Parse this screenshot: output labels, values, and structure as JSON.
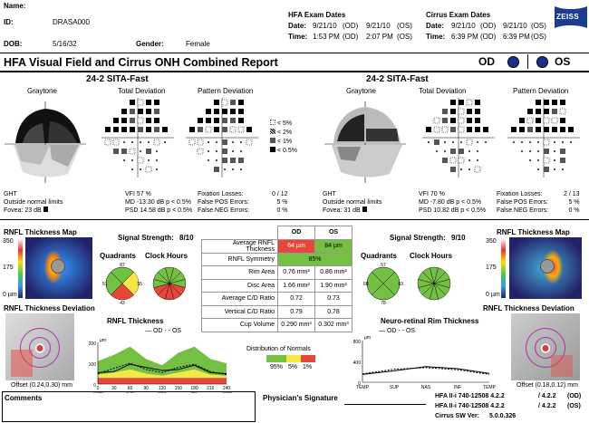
{
  "patient": {
    "name_label": "Name:",
    "id_label": "ID:",
    "id": "DRASA000",
    "dob_label": "DOB:",
    "dob": "5/16/32",
    "gender_label": "Gender:",
    "gender": "Female"
  },
  "hfa": {
    "title": "HFA Exam Dates",
    "date_label": "Date:",
    "time_label": "Time:",
    "od_date": "9/21/10",
    "od_time": "1:53 PM",
    "os_date": "9/21/10",
    "os_time": "2:07 PM",
    "od": "(OD)",
    "os": "(OS)"
  },
  "cirrus": {
    "title": "Cirrus Exam Dates",
    "date_label": "Date:",
    "time_label": "Time:",
    "od_date": "9/21/10",
    "od_time": "6:39 PM",
    "os_date": "9/21/10",
    "os_time": "6:39 PM",
    "od": "(OD)",
    "os": "(OS)"
  },
  "brand": "ZEISS",
  "report_title": "HFA Visual Field and Cirrus ONH Combined Report",
  "eye_od": "OD",
  "eye_os": "OS",
  "field": {
    "test_name": "24-2 SITA-Fast",
    "graytone": "Graytone",
    "total_dev": "Total Deviation",
    "pattern_dev": "Pattern Deviation",
    "legend": [
      "< 5%",
      "< 2%",
      "< 1%",
      "< 0.5%"
    ]
  },
  "od_stats": {
    "ght_label": "GHT",
    "ght": "Outside normal limits",
    "fovea": "Fovea: 23 dB",
    "vfi": "VFI  57 %",
    "md": "MD  -13.30 dB  p < 0.5%",
    "psd": "PSD 14.58 dB  p < 0.5%",
    "fix_label": "Fixation Losses:",
    "fix": "0 / 12",
    "fpos_label": "False POS Errors:",
    "fpos": "5 %",
    "fneg_label": "False NEG Errors:",
    "fneg": "0 %"
  },
  "os_stats": {
    "ght_label": "GHT",
    "ght": "Outside normal limits",
    "fovea": "Fovea: 31 dB",
    "vfi": "VFI  70 %",
    "md": "MD  -7.80 dB  p < 0.5%",
    "psd": "PSD 10.82 dB  p < 0.5%",
    "fix_label": "Fixation Losses:",
    "fix": "2 / 13",
    "fpos_label": "False POS Errors:",
    "fpos": "5 %",
    "fneg_label": "False NEG Errors:",
    "fneg": "0 %"
  },
  "rnfl_map": {
    "title": "RNFL Thickness Map",
    "scale_top": "350",
    "scale_mid": "175",
    "scale_bot": "0 µm"
  },
  "signal": {
    "label": "Signal Strength:",
    "od": "8/10",
    "os": "9/10"
  },
  "quadrants_label": "Quadrants",
  "clock_label": "Clock Hours",
  "od_quadrants": [
    "87",
    "55",
    "43",
    "51"
  ],
  "os_quadrants": [
    "57",
    "63",
    "78",
    "68"
  ],
  "table": {
    "col_od": "OD",
    "col_os": "OS",
    "rows": [
      {
        "label": "Average RNFL Thickness",
        "od": "64 µm",
        "os": "84 µm"
      },
      {
        "label": "RNFL Symmetry",
        "od": "85%",
        "os": ""
      },
      {
        "label": "Rim Area",
        "od": "0.76 mm²",
        "os": "0.86 mm²"
      },
      {
        "label": "Disc Area",
        "od": "1.66 mm²",
        "os": "1.90 mm²"
      },
      {
        "label": "Average C/D Ratio",
        "od": "0.72",
        "os": "0.73"
      },
      {
        "label": "Vertical C/D Ratio",
        "od": "0.79",
        "os": "0.78"
      },
      {
        "label": "Cup Volume",
        "od": "0.290 mm³",
        "os": "0.302 mm³"
      }
    ]
  },
  "rnfl_dev": {
    "title": "RNFL Thickness Deviation",
    "od_offset": "Offset (0.24,0.30) mm",
    "os_offset": "Offset (0.18,0.12) mm"
  },
  "rnfl_thick": {
    "title": "RNFL Thickness",
    "legend_od": "OD",
    "legend_os": "OS",
    "unit": "µm",
    "y_ticks": [
      "200",
      "100",
      "0"
    ],
    "x_ticks": [
      "0",
      "30",
      "60",
      "90",
      "120",
      "150",
      "180",
      "210",
      "240"
    ],
    "x_labels": [
      "TEMP",
      "SUP",
      "NAS",
      "INF",
      "TEMP"
    ]
  },
  "normals": {
    "title": "Distribution of Normals",
    "p95": "95%",
    "p5": "5%",
    "p1": "1%"
  },
  "nrim": {
    "title": "Neuro-retinal Rim Thickness",
    "legend_od": "OD",
    "legend_os": "OS",
    "unit": "µm",
    "y_ticks": [
      "800",
      "400",
      "0"
    ],
    "x_labels": [
      "TEMP",
      "SUP",
      "NAS",
      "INF",
      "TEMP"
    ]
  },
  "footer": {
    "comments": "Comments",
    "signature": "Physician's Signature",
    "hfa1": "HFA II-i   740-12508 4.2.2",
    "hfa1r": "/ 4.2.2",
    "hfa1e": "(OD)",
    "hfa2": "HFA II-i   740-12508 4.2.2",
    "hfa2r": "/ 4.2.2",
    "hfa2e": "(OS)",
    "cirrus": "Cirrus SW Ver:",
    "cirrus_ver": "5.0.0.326"
  },
  "chart_data": [
    {
      "type": "line",
      "title": "RNFL Thickness",
      "ylabel": "µm",
      "ylim": [
        0,
        200
      ],
      "x": [
        0,
        30,
        60,
        90,
        120,
        150,
        180,
        210,
        240
      ],
      "series": [
        {
          "name": "OD",
          "values": [
            55,
            60,
            95,
            80,
            65,
            70,
            90,
            55,
            50
          ]
        },
        {
          "name": "OS",
          "values": [
            50,
            75,
            100,
            70,
            55,
            80,
            95,
            60,
            45
          ]
        }
      ]
    },
    {
      "type": "line",
      "title": "Neuro-retinal Rim Thickness",
      "ylabel": "µm",
      "ylim": [
        0,
        800
      ],
      "x": [
        "TEMP",
        "SUP",
        "NAS",
        "INF",
        "TEMP"
      ],
      "series": [
        {
          "name": "OD",
          "values": [
            150,
            220,
            300,
            260,
            170
          ]
        },
        {
          "name": "OS",
          "values": [
            160,
            250,
            280,
            240,
            150
          ]
        }
      ]
    }
  ],
  "colors": {
    "red": "#e8463c",
    "yellow": "#f4e842",
    "green": "#74c043",
    "blue": "#1c2f8a"
  }
}
